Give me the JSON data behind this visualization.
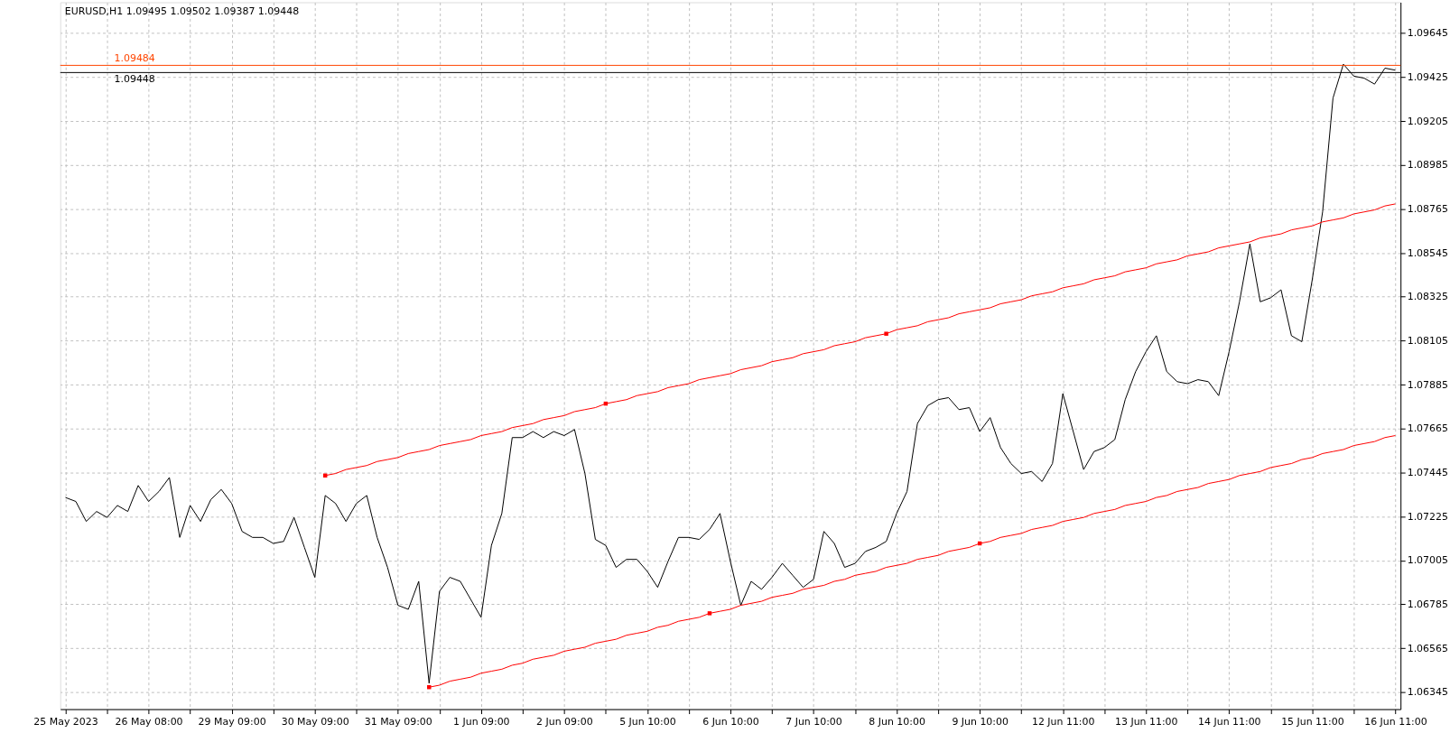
{
  "chart_data": {
    "type": "line",
    "title": "EURUSD,H1  1.09495 1.09502 1.09387 1.09448",
    "categories": [
      "25 May 2023",
      null,
      null,
      null,
      null,
      null,
      null,
      null,
      "26 May 08:00",
      null,
      null,
      null,
      null,
      null,
      null,
      null,
      "29 May 09:00",
      null,
      null,
      null,
      null,
      null,
      null,
      null,
      "30 May 09:00",
      null,
      null,
      null,
      null,
      null,
      null,
      null,
      "31 May 09:00",
      null,
      null,
      null,
      null,
      null,
      null,
      null,
      "1 Jun 09:00",
      null,
      null,
      null,
      null,
      null,
      null,
      null,
      "2 Jun 09:00",
      null,
      null,
      null,
      null,
      null,
      null,
      null,
      "5 Jun 10:00",
      null,
      null,
      null,
      null,
      null,
      null,
      null,
      "6 Jun 10:00",
      null,
      null,
      null,
      null,
      null,
      null,
      null,
      "7 Jun 10:00",
      null,
      null,
      null,
      null,
      null,
      null,
      null,
      "8 Jun 10:00",
      null,
      null,
      null,
      null,
      null,
      null,
      null,
      "9 Jun 10:00",
      null,
      null,
      null,
      null,
      null,
      null,
      null,
      "12 Jun 11:00",
      null,
      null,
      null,
      null,
      null,
      null,
      null,
      "13 Jun 11:00",
      null,
      null,
      null,
      null,
      null,
      null,
      null,
      "14 Jun 11:00",
      null,
      null,
      null,
      null,
      null,
      null,
      null,
      "15 Jun 11:00",
      null,
      null,
      null,
      null,
      null,
      null,
      null,
      "16 Jun 11:00"
    ],
    "series": [
      {
        "color": "#000000",
        "values": [
          1.0732,
          1.073,
          1.072,
          1.0725,
          1.0722,
          1.0728,
          1.0725,
          1.0738,
          1.073,
          1.0735,
          1.0742,
          1.0712,
          1.0728,
          1.072,
          1.0731,
          1.0736,
          1.0729,
          1.0715,
          1.0712,
          1.0712,
          1.0709,
          1.071,
          1.0722,
          1.0707,
          1.0692,
          1.0733,
          1.0729,
          1.072,
          1.0729,
          1.0733,
          1.0712,
          1.0697,
          1.0678,
          1.0676,
          1.069,
          1.0639,
          1.0685,
          1.0692,
          1.069,
          1.0681,
          1.0672,
          1.0708,
          1.0724,
          1.0762,
          1.0762,
          1.0765,
          1.0762,
          1.0765,
          1.0763,
          1.0766,
          1.0744,
          1.0711,
          1.0708,
          1.0697,
          1.0701,
          1.0701,
          1.0695,
          1.0687,
          1.07,
          1.0712,
          1.0712,
          1.0711,
          1.0716,
          1.0724,
          1.07,
          1.0678,
          1.069,
          1.0686,
          1.0692,
          1.0699,
          1.0693,
          1.0687,
          1.0691,
          1.0715,
          1.0709,
          1.0697,
          1.0699,
          1.0705,
          1.0707,
          1.071,
          1.0724,
          1.0735,
          1.0769,
          1.0778,
          1.0781,
          1.0782,
          1.0776,
          1.0777,
          1.0765,
          1.0772,
          1.0757,
          1.0749,
          1.0744,
          1.0745,
          1.074,
          1.0749,
          1.0784,
          1.0765,
          1.0746,
          1.0755,
          1.0757,
          1.0761,
          1.0781,
          1.0795,
          1.0805,
          1.0813,
          1.0795,
          1.079,
          1.0789,
          1.0791,
          1.079,
          1.0783,
          1.0805,
          1.083,
          1.0859,
          1.083,
          1.0832,
          1.0836,
          1.0813,
          1.081,
          1.0841,
          1.0875,
          1.0932,
          1.0949,
          1.0943,
          1.0942,
          1.0939,
          1.0947,
          1.0946
        ]
      },
      {
        "type": "line",
        "color": "#ff0000",
        "values": [
          null,
          null,
          null,
          null,
          null,
          null,
          null,
          null,
          null,
          null,
          null,
          null,
          null,
          null,
          null,
          null,
          null,
          null,
          null,
          null,
          null,
          null,
          null,
          null,
          null,
          1.0743,
          1.0744,
          1.0746,
          1.0747,
          1.0748,
          1.075,
          1.0751,
          1.0752,
          1.0754,
          1.0755,
          1.0756,
          1.0758,
          1.0759,
          1.076,
          1.0761,
          1.0763,
          1.0764,
          1.0765,
          1.0767,
          1.0768,
          1.0769,
          1.0771,
          1.0772,
          1.0773,
          1.0775,
          1.0776,
          1.0777,
          1.0779,
          1.078,
          1.0781,
          1.0783,
          1.0784,
          1.0785,
          1.0787,
          1.0788,
          1.0789,
          1.0791,
          1.0792,
          1.0793,
          1.0794,
          1.0796,
          1.0797,
          1.0798,
          1.08,
          1.0801,
          1.0802,
          1.0804,
          1.0805,
          1.0806,
          1.0808,
          1.0809,
          1.081,
          1.0812,
          1.0813,
          1.0814,
          1.0816,
          1.0817,
          1.0818,
          1.082,
          1.0821,
          1.0822,
          1.0824,
          1.0825,
          1.0826,
          1.0827,
          1.0829,
          1.083,
          1.0831,
          1.0833,
          1.0834,
          1.0835,
          1.0837,
          1.0838,
          1.0839,
          1.0841,
          1.0842,
          1.0843,
          1.0845,
          1.0846,
          1.0847,
          1.0849,
          1.085,
          1.0851,
          1.0853,
          1.0854,
          1.0855,
          1.0857,
          1.0858,
          1.0859,
          1.086,
          1.0862,
          1.0863,
          1.0864,
          1.0866,
          1.0867,
          1.0868,
          1.087,
          1.0871,
          1.0872,
          1.0874,
          1.0875,
          1.0876,
          1.0878,
          1.0879
        ]
      },
      {
        "type": "line",
        "color": "#ff0000",
        "values": [
          null,
          null,
          null,
          null,
          null,
          null,
          null,
          null,
          null,
          null,
          null,
          null,
          null,
          null,
          null,
          null,
          null,
          null,
          null,
          null,
          null,
          null,
          null,
          null,
          null,
          null,
          null,
          null,
          null,
          null,
          null,
          null,
          null,
          null,
          null,
          1.0637,
          1.0638,
          1.064,
          1.0641,
          1.0642,
          1.0644,
          1.0645,
          1.0646,
          1.0648,
          1.0649,
          1.0651,
          1.0652,
          1.0653,
          1.0655,
          1.0656,
          1.0657,
          1.0659,
          1.066,
          1.0661,
          1.0663,
          1.0664,
          1.0665,
          1.0667,
          1.0668,
          1.067,
          1.0671,
          1.0672,
          1.0674,
          1.0675,
          1.0676,
          1.0678,
          1.0679,
          1.068,
          1.0682,
          1.0683,
          1.0684,
          1.0686,
          1.0687,
          1.0688,
          1.069,
          1.0691,
          1.0693,
          1.0694,
          1.0695,
          1.0697,
          1.0698,
          1.0699,
          1.0701,
          1.0702,
          1.0703,
          1.0705,
          1.0706,
          1.0707,
          1.0709,
          1.071,
          1.0712,
          1.0713,
          1.0714,
          1.0716,
          1.0717,
          1.0718,
          1.072,
          1.0721,
          1.0722,
          1.0724,
          1.0725,
          1.0726,
          1.0728,
          1.0729,
          1.073,
          1.0732,
          1.0733,
          1.0735,
          1.0736,
          1.0737,
          1.0739,
          1.074,
          1.0741,
          1.0743,
          1.0744,
          1.0745,
          1.0747,
          1.0748,
          1.0749,
          1.0751,
          1.0752,
          1.0754,
          1.0755,
          1.0756,
          1.0758,
          1.0759,
          1.076,
          1.0762,
          1.0763
        ]
      },
      {
        "type": "scatter",
        "color": "#ff0000",
        "marker": "square",
        "values": [
          null,
          null,
          null,
          null,
          null,
          null,
          null,
          null,
          null,
          null,
          null,
          null,
          null,
          null,
          null,
          null,
          null,
          null,
          null,
          null,
          null,
          null,
          null,
          null,
          null,
          1.0743,
          null,
          null,
          null,
          null,
          null,
          null,
          null,
          null,
          null,
          1.0637,
          null,
          null,
          null,
          null,
          null,
          null,
          null,
          null,
          null,
          null,
          null,
          null,
          null,
          null,
          null,
          null,
          1.0779,
          null,
          null,
          null,
          null,
          null,
          null,
          null,
          null,
          null,
          1.0674,
          null,
          null,
          null,
          null,
          null,
          null,
          null,
          null,
          null,
          null,
          null,
          null,
          null,
          null,
          null,
          null,
          1.0814,
          null,
          null,
          null,
          null,
          null,
          null,
          null,
          null,
          1.0709,
          null,
          null,
          null,
          null,
          null,
          null,
          null,
          null,
          null,
          null,
          null,
          null,
          null,
          null,
          null,
          null,
          null,
          null,
          null,
          null,
          null,
          null,
          null,
          null,
          null,
          null,
          null,
          null,
          null,
          null,
          null,
          null,
          null,
          null,
          null,
          null,
          null,
          null,
          null,
          null
        ]
      }
    ],
    "ylim": [
      1.0626,
      1.098
    ],
    "yticks": [
      1.06345,
      1.06565,
      1.06785,
      1.07005,
      1.07225,
      1.07445,
      1.07665,
      1.07885,
      1.08105,
      1.08325,
      1.08545,
      1.08765,
      1.08985,
      1.09205,
      1.09425,
      1.09645
    ],
    "ref_lines": [
      {
        "axis": "y",
        "value": 1.09484,
        "label": "1.09484",
        "color": "#ff4500"
      },
      {
        "axis": "y",
        "value": 1.09448,
        "label": "1.09448",
        "color": "#000000"
      }
    ],
    "grid": true
  }
}
